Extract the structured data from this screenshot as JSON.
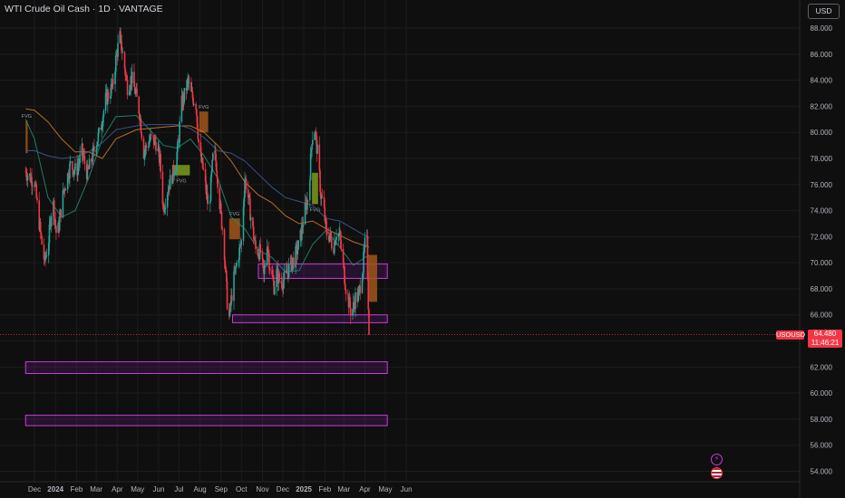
{
  "header": {
    "title": "WTI Crude Oil Cash · 1D · VANTAGE",
    "currency": "USD"
  },
  "price_tag": {
    "symbol": "USOUSD",
    "price": "64.480",
    "countdown": "11:46:21"
  },
  "colors": {
    "background": "#0f0f0f",
    "up": "#26a69a",
    "down": "#f23645",
    "zone_border": "#c43fd6",
    "zone_fill": "#7b1fa2",
    "fvg_bull": "#7a9a1e",
    "fvg_bear": "#a0561a",
    "ma_fast": "#1f8a70",
    "ma_mid": "#c87a28",
    "ma_slow": "#3d5a98"
  },
  "events": {
    "lightning_icon": "lightning-icon",
    "flag_icon": "us-flag-icon"
  },
  "chart_data": {
    "type": "candlestick",
    "title": "WTI Crude Oil Cash",
    "timeframe": "1D",
    "source": "VANTAGE",
    "ylim": [
      53.2,
      89.6
    ],
    "y_ticks": [
      "54.000",
      "56.000",
      "58.000",
      "60.000",
      "62.000",
      "64.000",
      "66.000",
      "68.000",
      "70.000",
      "72.000",
      "74.000",
      "76.000",
      "78.000",
      "80.000",
      "82.000",
      "84.000",
      "86.000",
      "88.000"
    ],
    "x_ticks": [
      "Dec",
      "2024",
      "Feb",
      "Mar",
      "Apr",
      "May",
      "Jun",
      "Jul",
      "Aug",
      "Sep",
      "Oct",
      "Nov",
      "Dec",
      "2025",
      "Feb",
      "Mar",
      "Apr",
      "May",
      "Jun"
    ],
    "x_tick_days": [
      0,
      31,
      62,
      91,
      122,
      152,
      183,
      213,
      244,
      275,
      305,
      336,
      366,
      397,
      428,
      456,
      487,
      517,
      548
    ],
    "x_start_date": "2023-12-01",
    "last_price": 64.48,
    "price_path": [
      [
        -13,
        77.0
      ],
      [
        -5,
        76.5
      ],
      [
        0,
        76.3
      ],
      [
        6,
        73.5
      ],
      [
        9,
        72.2
      ],
      [
        15,
        70.0
      ],
      [
        21,
        71.8
      ],
      [
        27,
        75.0
      ],
      [
        33,
        71.8
      ],
      [
        43,
        75.5
      ],
      [
        53,
        77.5
      ],
      [
        62,
        77.0
      ],
      [
        70,
        78.5
      ],
      [
        78,
        76.8
      ],
      [
        90,
        79.0
      ],
      [
        96,
        80.0
      ],
      [
        105,
        82.5
      ],
      [
        115,
        83.5
      ],
      [
        121,
        86.0
      ],
      [
        126,
        87.3
      ],
      [
        130,
        86.0
      ],
      [
        137,
        83.5
      ],
      [
        143,
        84.2
      ],
      [
        149,
        83.0
      ],
      [
        155,
        81.5
      ],
      [
        161,
        78.5
      ],
      [
        171,
        79.5
      ],
      [
        179,
        79.2
      ],
      [
        185,
        77.8
      ],
      [
        190,
        74.2
      ],
      [
        197,
        75.8
      ],
      [
        205,
        77.0
      ],
      [
        212,
        79.0
      ],
      [
        216,
        82.0
      ],
      [
        222,
        83.0
      ],
      [
        226,
        83.9
      ],
      [
        231,
        82.9
      ],
      [
        238,
        82.2
      ],
      [
        243,
        78.5
      ],
      [
        249,
        77.0
      ],
      [
        257,
        73.9
      ],
      [
        264,
        78.7
      ],
      [
        268,
        77.6
      ],
      [
        274,
        74.0
      ],
      [
        279,
        71.8
      ],
      [
        284,
        67.0
      ],
      [
        287,
        65.8
      ],
      [
        293,
        68.5
      ],
      [
        299,
        70.2
      ],
      [
        305,
        71.6
      ],
      [
        310,
        76.5
      ],
      [
        313,
        75.8
      ],
      [
        319,
        73.5
      ],
      [
        326,
        71.0
      ],
      [
        333,
        70.8
      ],
      [
        338,
        68.9
      ],
      [
        343,
        71.7
      ],
      [
        347,
        69.7
      ],
      [
        353,
        68.2
      ],
      [
        357,
        69.2
      ],
      [
        363,
        68.4
      ],
      [
        370,
        68.9
      ],
      [
        376,
        69.7
      ],
      [
        383,
        70.3
      ],
      [
        391,
        71.6
      ],
      [
        397,
        73.6
      ],
      [
        404,
        75.2
      ],
      [
        409,
        79.6
      ],
      [
        413,
        80.2
      ],
      [
        418,
        78.0
      ],
      [
        422,
        75.2
      ],
      [
        426,
        74.4
      ],
      [
        430,
        72.3
      ],
      [
        435,
        72.1
      ],
      [
        440,
        71.1
      ],
      [
        445,
        72.4
      ],
      [
        450,
        72.0
      ],
      [
        454,
        70.2
      ],
      [
        459,
        68.1
      ],
      [
        464,
        66.8
      ],
      [
        467,
        66.1
      ],
      [
        471,
        66.8
      ],
      [
        474,
        67.6
      ],
      [
        477,
        67.2
      ],
      [
        480,
        68.3
      ],
      [
        484,
        69.6
      ],
      [
        487,
        71.4
      ],
      [
        490,
        71.5
      ],
      [
        492,
        66.9
      ],
      [
        493,
        64.48
      ]
    ],
    "moving_averages": [
      {
        "key": "ma_fast",
        "points": [
          [
            -13,
            81.0
          ],
          [
            0,
            79.5
          ],
          [
            20,
            75.0
          ],
          [
            40,
            73.5
          ],
          [
            60,
            74.0
          ],
          [
            80,
            76.5
          ],
          [
            100,
            79.5
          ],
          [
            120,
            81.2
          ],
          [
            150,
            81.3
          ],
          [
            170,
            80.2
          ],
          [
            190,
            79.0
          ],
          [
            210,
            78.8
          ],
          [
            230,
            79.5
          ],
          [
            250,
            78.2
          ],
          [
            270,
            76.5
          ],
          [
            290,
            73.5
          ],
          [
            310,
            72.6
          ],
          [
            330,
            71.0
          ],
          [
            350,
            70.4
          ],
          [
            370,
            69.3
          ],
          [
            390,
            69.4
          ],
          [
            410,
            71.4
          ],
          [
            430,
            72.5
          ],
          [
            450,
            71.2
          ],
          [
            470,
            69.8
          ],
          [
            493,
            70.6
          ]
        ]
      },
      {
        "key": "ma_mid",
        "points": [
          [
            -13,
            81.8
          ],
          [
            0,
            81.7
          ],
          [
            20,
            80.8
          ],
          [
            40,
            79.5
          ],
          [
            60,
            78.5
          ],
          [
            80,
            78.5
          ],
          [
            100,
            78.0
          ],
          [
            120,
            79.5
          ],
          [
            150,
            80.2
          ],
          [
            170,
            80.3
          ],
          [
            190,
            80.4
          ],
          [
            210,
            80.5
          ],
          [
            230,
            80.5
          ],
          [
            250,
            80.0
          ],
          [
            270,
            79.0
          ],
          [
            290,
            77.8
          ],
          [
            310,
            76.2
          ],
          [
            330,
            75.2
          ],
          [
            350,
            74.6
          ],
          [
            370,
            73.6
          ],
          [
            390,
            73.0
          ],
          [
            410,
            73.2
          ],
          [
            430,
            72.6
          ],
          [
            450,
            72.1
          ],
          [
            470,
            71.6
          ],
          [
            493,
            71.2
          ]
        ]
      },
      {
        "key": "ma_slow",
        "points": [
          [
            -13,
            78.6
          ],
          [
            0,
            78.6
          ],
          [
            20,
            78.2
          ],
          [
            40,
            78.0
          ],
          [
            60,
            78.1
          ],
          [
            80,
            78.5
          ],
          [
            100,
            79.2
          ],
          [
            120,
            80.2
          ],
          [
            150,
            80.5
          ],
          [
            170,
            80.6
          ],
          [
            190,
            80.6
          ],
          [
            210,
            80.6
          ],
          [
            230,
            80.3
          ],
          [
            250,
            79.6
          ],
          [
            270,
            78.6
          ],
          [
            290,
            78.4
          ],
          [
            310,
            77.8
          ],
          [
            330,
            76.8
          ],
          [
            350,
            75.8
          ],
          [
            370,
            75.0
          ],
          [
            390,
            74.7
          ],
          [
            410,
            74.4
          ],
          [
            430,
            73.4
          ],
          [
            450,
            73.2
          ],
          [
            470,
            72.6
          ],
          [
            493,
            71.9
          ]
        ]
      }
    ],
    "zones": [
      {
        "type": "support",
        "from_day": 330,
        "to_day": 520,
        "low": 68.8,
        "high": 69.9
      },
      {
        "type": "support",
        "from_day": 292,
        "to_day": 520,
        "low": 65.4,
        "high": 66.0
      },
      {
        "type": "support",
        "from_day": -13,
        "to_day": 520,
        "low": 61.5,
        "high": 62.4
      },
      {
        "type": "support",
        "from_day": -13,
        "to_day": 520,
        "low": 57.5,
        "high": 58.3
      }
    ],
    "fvg_boxes": [
      {
        "kind": "bullish",
        "label": "FVG",
        "from_day": 204,
        "to_day": 229,
        "low": 76.7,
        "high": 77.5
      },
      {
        "kind": "bearish",
        "label": "FVG",
        "from_day": 243,
        "to_day": 256,
        "low": 80.0,
        "high": 81.6
      },
      {
        "kind": "bearish",
        "label": "FVG",
        "from_day": 287,
        "to_day": 303,
        "low": 71.8,
        "high": 73.4
      },
      {
        "kind": "bullish",
        "label": "FVG",
        "from_day": 409,
        "to_day": 418,
        "low": 74.5,
        "high": 76.9
      },
      {
        "kind": "bearish",
        "label": "FVG",
        "from_day": -13,
        "to_day": -10,
        "low": 78.4,
        "high": 80.9
      },
      {
        "kind": "bearish",
        "label": "",
        "from_day": 492,
        "to_day": 505,
        "low": 67.0,
        "high": 70.6
      }
    ],
    "grid": true,
    "legend": "none"
  }
}
